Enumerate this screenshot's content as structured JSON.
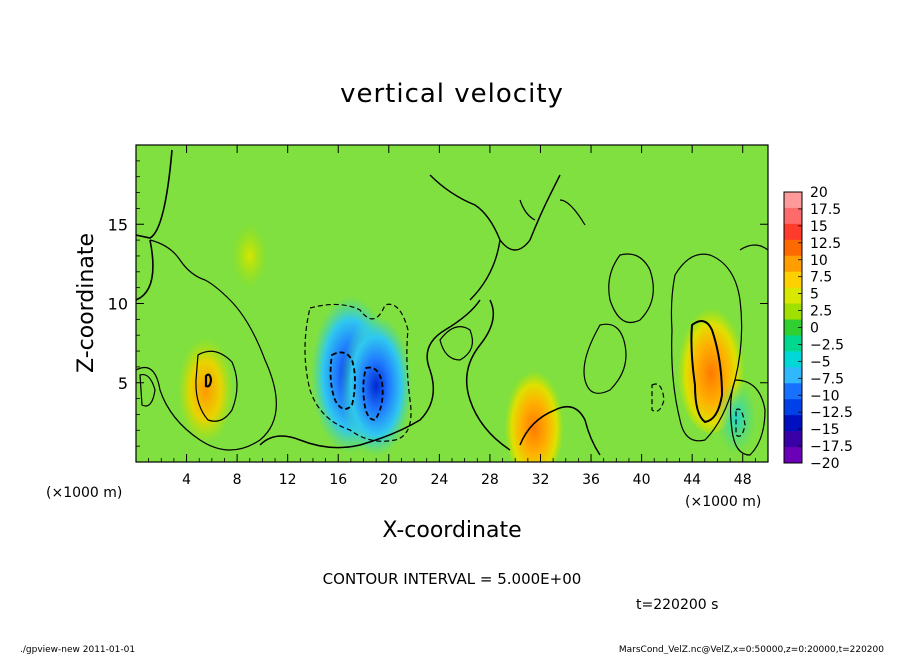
{
  "chart_data": {
    "type": "heatmap",
    "title": "vertical velocity",
    "xlabel": "X-coordinate",
    "ylabel": "Z-coordinate",
    "x_unit_left": "(×1000 m)",
    "x_unit_right": "(×1000 m)",
    "xlim": [
      0,
      50
    ],
    "ylim": [
      0,
      20
    ],
    "xticks": [
      "4",
      "8",
      "12",
      "16",
      "20",
      "24",
      "28",
      "32",
      "36",
      "40",
      "44",
      "48"
    ],
    "yticks": [
      "5",
      "10",
      "15"
    ],
    "contour_interval": "CONTOUR INTERVAL = 5.000E+00",
    "time_label": "t=220200 s",
    "colorbar": {
      "labels": [
        "20",
        "17.5",
        "15",
        "12.5",
        "10",
        "7.5",
        "5",
        "2.5",
        "0",
        "−2.5",
        "−5",
        "−7.5",
        "−10",
        "−12.5",
        "−15",
        "−17.5",
        "−20"
      ],
      "colors": [
        "#ff9a9a",
        "#ff6a6a",
        "#ff3b2b",
        "#ff6a00",
        "#ff9e00",
        "#ffd000",
        "#d8e800",
        "#a0e000",
        "#30d030",
        "#00d890",
        "#00d8d8",
        "#30b8ff",
        "#1870ff",
        "#0040e8",
        "#0010c0",
        "#3a00a8",
        "#6a00b8"
      ]
    },
    "features": [
      {
        "x": 5.5,
        "z": 4.5,
        "value": 8
      },
      {
        "x": 9.0,
        "z": 13.0,
        "value": 3
      },
      {
        "x": 17.0,
        "z": 5.5,
        "value": -14
      },
      {
        "x": 19.0,
        "z": 4.8,
        "value": -12
      },
      {
        "x": 31.5,
        "z": 2.5,
        "value": 9
      },
      {
        "x": 45.5,
        "z": 6.0,
        "value": 11
      },
      {
        "x": 47.5,
        "z": 2.8,
        "value": -4
      }
    ]
  },
  "footer": {
    "left": "./gpview-new  2011-01-01",
    "right": "MarsCond_VelZ.nc@VelZ,x=0:50000,z=0:20000,t=220200"
  }
}
